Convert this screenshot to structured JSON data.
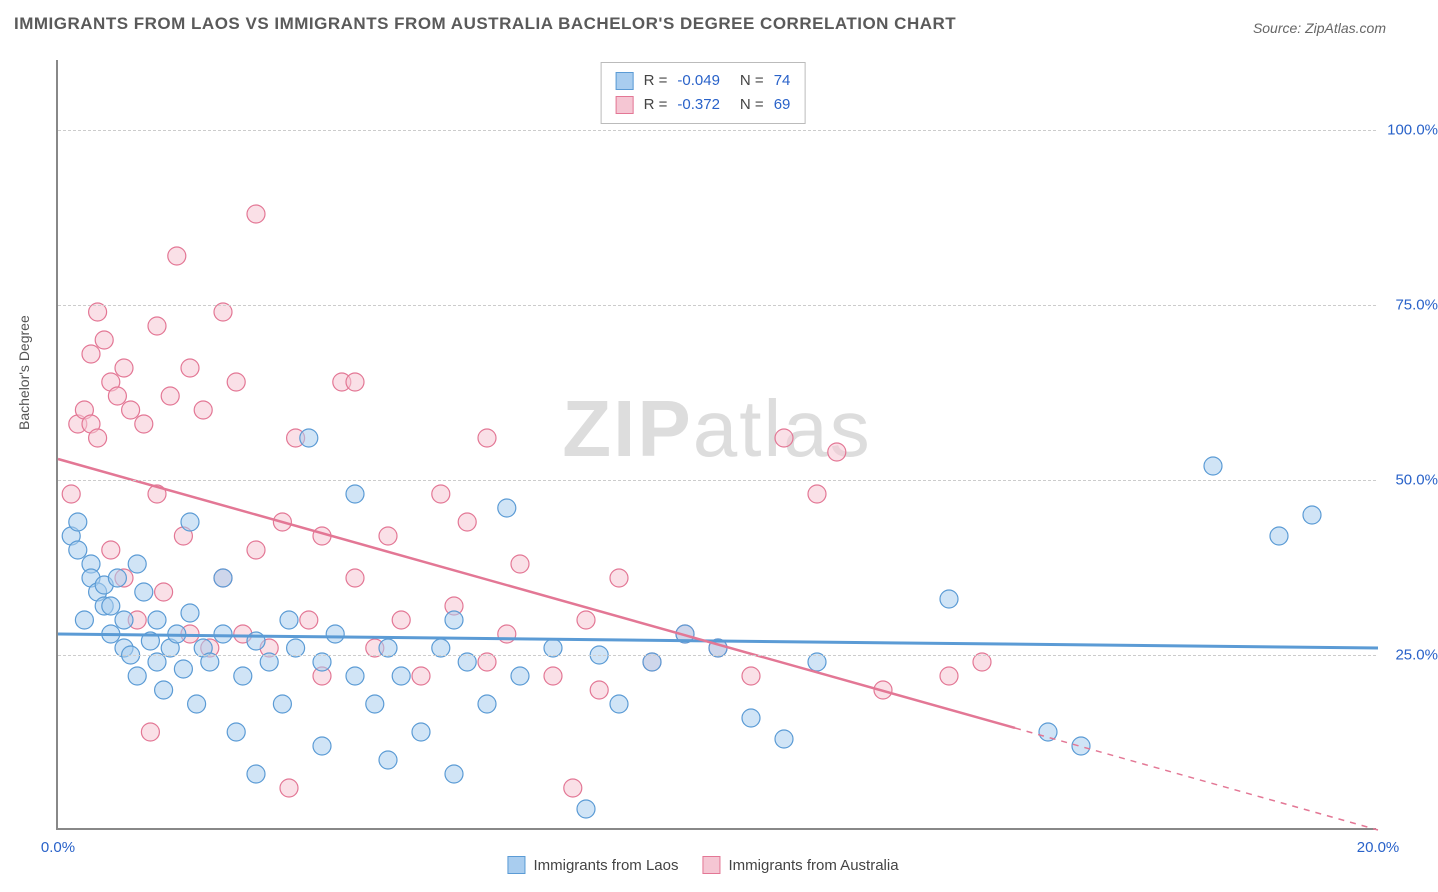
{
  "title": "IMMIGRANTS FROM LAOS VS IMMIGRANTS FROM AUSTRALIA BACHELOR'S DEGREE CORRELATION CHART",
  "source": "Source: ZipAtlas.com",
  "ylabel": "Bachelor's Degree",
  "watermark_a": "ZIP",
  "watermark_b": "atlas",
  "chart": {
    "type": "scatter",
    "background_color": "#ffffff",
    "grid_color": "#cccccc",
    "axis_color": "#888888",
    "xlim": [
      0,
      20
    ],
    "ylim": [
      0,
      110
    ],
    "yticks": [
      {
        "v": 25,
        "label": "25.0%"
      },
      {
        "v": 50,
        "label": "50.0%"
      },
      {
        "v": 75,
        "label": "75.0%"
      },
      {
        "v": 100,
        "label": "100.0%"
      }
    ],
    "xticks": [
      {
        "v": 0,
        "label": "0.0%"
      },
      {
        "v": 20,
        "label": "20.0%"
      }
    ],
    "marker_radius": 9,
    "marker_opacity": 0.55,
    "series": [
      {
        "name": "Immigrants from Laos",
        "color_fill": "#a9cdef",
        "color_stroke": "#5b9bd5",
        "r_value": "-0.049",
        "n_value": "74",
        "trend": {
          "y_at_xmin": 28,
          "y_at_xmax": 26,
          "solid_until_x": 20,
          "line_width": 3
        },
        "points": [
          [
            0.2,
            42
          ],
          [
            0.3,
            44
          ],
          [
            0.3,
            40
          ],
          [
            0.4,
            30
          ],
          [
            0.5,
            38
          ],
          [
            0.5,
            36
          ],
          [
            0.6,
            34
          ],
          [
            0.7,
            35
          ],
          [
            0.7,
            32
          ],
          [
            0.8,
            28
          ],
          [
            0.8,
            32
          ],
          [
            0.9,
            36
          ],
          [
            1.0,
            30
          ],
          [
            1.0,
            26
          ],
          [
            1.1,
            25
          ],
          [
            1.2,
            38
          ],
          [
            1.2,
            22
          ],
          [
            1.3,
            34
          ],
          [
            1.4,
            27
          ],
          [
            1.5,
            24
          ],
          [
            1.5,
            30
          ],
          [
            1.6,
            20
          ],
          [
            1.7,
            26
          ],
          [
            1.8,
            28
          ],
          [
            1.9,
            23
          ],
          [
            2.0,
            44
          ],
          [
            2.0,
            31
          ],
          [
            2.1,
            18
          ],
          [
            2.2,
            26
          ],
          [
            2.3,
            24
          ],
          [
            2.5,
            36
          ],
          [
            2.5,
            28
          ],
          [
            2.7,
            14
          ],
          [
            2.8,
            22
          ],
          [
            3.0,
            27
          ],
          [
            3.0,
            8
          ],
          [
            3.2,
            24
          ],
          [
            3.4,
            18
          ],
          [
            3.5,
            30
          ],
          [
            3.6,
            26
          ],
          [
            3.8,
            56
          ],
          [
            4.0,
            24
          ],
          [
            4.0,
            12
          ],
          [
            4.2,
            28
          ],
          [
            4.5,
            48
          ],
          [
            4.5,
            22
          ],
          [
            4.8,
            18
          ],
          [
            5.0,
            26
          ],
          [
            5.0,
            10
          ],
          [
            5.2,
            22
          ],
          [
            5.5,
            14
          ],
          [
            5.8,
            26
          ],
          [
            6.0,
            30
          ],
          [
            6.0,
            8
          ],
          [
            6.2,
            24
          ],
          [
            6.5,
            18
          ],
          [
            6.8,
            46
          ],
          [
            7.0,
            22
          ],
          [
            7.5,
            26
          ],
          [
            8.0,
            3
          ],
          [
            8.2,
            25
          ],
          [
            8.5,
            18
          ],
          [
            9.0,
            24
          ],
          [
            9.5,
            28
          ],
          [
            10.0,
            26
          ],
          [
            10.5,
            16
          ],
          [
            11.0,
            13
          ],
          [
            11.5,
            24
          ],
          [
            13.5,
            33
          ],
          [
            15.0,
            14
          ],
          [
            15.5,
            12
          ],
          [
            17.5,
            52
          ],
          [
            18.5,
            42
          ],
          [
            19.0,
            45
          ]
        ]
      },
      {
        "name": "Immigrants from Australia",
        "color_fill": "#f5c6d3",
        "color_stroke": "#e37795",
        "r_value": "-0.372",
        "n_value": "69",
        "trend": {
          "y_at_xmin": 53,
          "y_at_xmax": 0,
          "solid_until_x": 14.5,
          "line_width": 2.5
        },
        "points": [
          [
            0.2,
            48
          ],
          [
            0.3,
            58
          ],
          [
            0.4,
            60
          ],
          [
            0.5,
            68
          ],
          [
            0.5,
            58
          ],
          [
            0.6,
            56
          ],
          [
            0.6,
            74
          ],
          [
            0.7,
            70
          ],
          [
            0.8,
            64
          ],
          [
            0.8,
            40
          ],
          [
            0.9,
            62
          ],
          [
            1.0,
            66
          ],
          [
            1.0,
            36
          ],
          [
            1.1,
            60
          ],
          [
            1.2,
            30
          ],
          [
            1.3,
            58
          ],
          [
            1.4,
            14
          ],
          [
            1.5,
            72
          ],
          [
            1.5,
            48
          ],
          [
            1.6,
            34
          ],
          [
            1.7,
            62
          ],
          [
            1.8,
            82
          ],
          [
            1.9,
            42
          ],
          [
            2.0,
            66
          ],
          [
            2.0,
            28
          ],
          [
            2.2,
            60
          ],
          [
            2.3,
            26
          ],
          [
            2.5,
            74
          ],
          [
            2.5,
            36
          ],
          [
            2.7,
            64
          ],
          [
            2.8,
            28
          ],
          [
            3.0,
            88
          ],
          [
            3.0,
            40
          ],
          [
            3.2,
            26
          ],
          [
            3.4,
            44
          ],
          [
            3.5,
            6
          ],
          [
            3.6,
            56
          ],
          [
            3.8,
            30
          ],
          [
            4.0,
            42
          ],
          [
            4.0,
            22
          ],
          [
            4.3,
            64
          ],
          [
            4.5,
            64
          ],
          [
            4.5,
            36
          ],
          [
            4.8,
            26
          ],
          [
            5.0,
            42
          ],
          [
            5.2,
            30
          ],
          [
            5.5,
            22
          ],
          [
            5.8,
            48
          ],
          [
            6.0,
            32
          ],
          [
            6.2,
            44
          ],
          [
            6.5,
            56
          ],
          [
            6.5,
            24
          ],
          [
            6.8,
            28
          ],
          [
            7.0,
            38
          ],
          [
            7.5,
            22
          ],
          [
            7.8,
            6
          ],
          [
            8.0,
            30
          ],
          [
            8.2,
            20
          ],
          [
            8.5,
            36
          ],
          [
            9.0,
            24
          ],
          [
            9.5,
            28
          ],
          [
            10.0,
            26
          ],
          [
            10.5,
            22
          ],
          [
            11.0,
            56
          ],
          [
            11.5,
            48
          ],
          [
            11.8,
            54
          ],
          [
            12.5,
            20
          ],
          [
            13.5,
            22
          ],
          [
            14.0,
            24
          ]
        ]
      }
    ]
  },
  "legend_bottom": [
    {
      "label": "Immigrants from Laos",
      "fill": "#a9cdef",
      "stroke": "#5b9bd5"
    },
    {
      "label": "Immigrants from Australia",
      "fill": "#f5c6d3",
      "stroke": "#e37795"
    }
  ]
}
